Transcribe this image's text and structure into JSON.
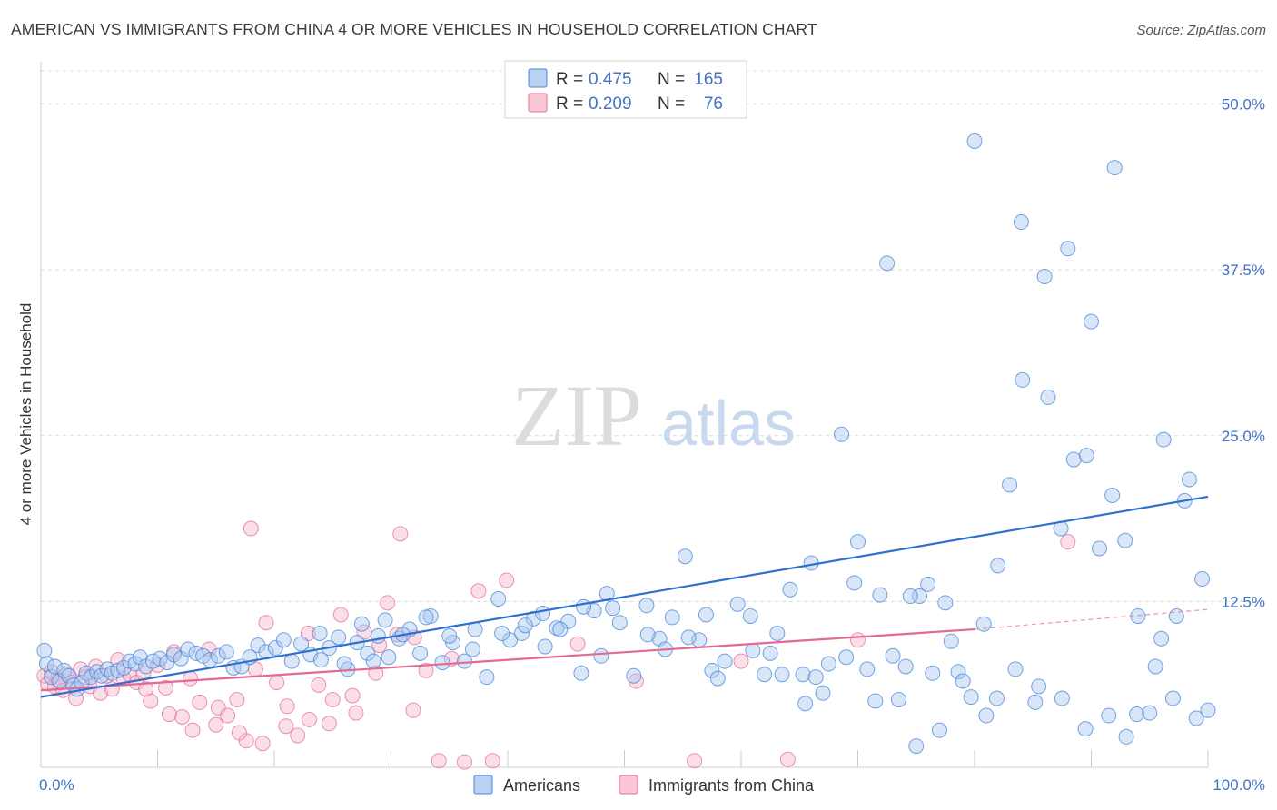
{
  "title": "AMERICAN VS IMMIGRANTS FROM CHINA 4 OR MORE VEHICLES IN HOUSEHOLD CORRELATION CHART",
  "source": "Source: ZipAtlas.com",
  "watermark": {
    "zip": "ZIP",
    "atlas": "atlas"
  },
  "colors": {
    "americans_fill": "#a9c7ef",
    "americans_stroke": "#4a86d8",
    "americans_line": "#2f6fd0",
    "china_fill": "#f6b8cb",
    "china_stroke": "#e46f96",
    "china_line": "#e26a93",
    "tick_label": "#4472c4",
    "grid": "#d9d9d9"
  },
  "legend": {
    "rows": [
      {
        "r_label": "R =",
        "r_value": "0.475",
        "n_label": "N =",
        "n_value": "165"
      },
      {
        "r_label": "R =",
        "r_value": "0.209",
        "n_label": "N =",
        "n_value": "76"
      }
    ]
  },
  "bottom_legend": [
    "Americans",
    "Immigrants from China"
  ],
  "chart_data": {
    "type": "scatter",
    "ylabel": "4 or more Vehicles in Household",
    "xlabel": "",
    "xlim": [
      0,
      100
    ],
    "ylim": [
      0,
      52.5
    ],
    "x_tick_labels": [
      "0.0%",
      "100.0%"
    ],
    "y_ticks": [
      12.5,
      25.0,
      37.5,
      50.0
    ],
    "y_tick_labels": [
      "12.5%",
      "25.0%",
      "37.5%",
      "50.0%"
    ],
    "x_minor_ticks": [
      10,
      20,
      30,
      40,
      50,
      60,
      70,
      80,
      90,
      100
    ],
    "grid": true,
    "legend_placement": "top-center",
    "series": [
      {
        "name": "Americans",
        "r": 0.475,
        "n": 165,
        "trend": {
          "x": [
            0,
            100
          ],
          "y": [
            5.3,
            20.4
          ]
        },
        "points": [
          [
            0.3,
            8.8
          ],
          [
            0.5,
            7.8
          ],
          [
            0.9,
            6.8
          ],
          [
            1.2,
            7.6
          ],
          [
            1.6,
            6.5
          ],
          [
            2.0,
            7.3
          ],
          [
            2.4,
            6.9
          ],
          [
            2.8,
            6.2
          ],
          [
            3.1,
            5.9
          ],
          [
            3.5,
            6.4
          ],
          [
            3.9,
            7.1
          ],
          [
            4.3,
            6.8
          ],
          [
            4.8,
            7.2
          ],
          [
            5.2,
            6.9
          ],
          [
            5.7,
            7.4
          ],
          [
            6.1,
            7.1
          ],
          [
            6.6,
            7.3
          ],
          [
            7.1,
            7.5
          ],
          [
            7.6,
            8.0
          ],
          [
            8.1,
            7.8
          ],
          [
            8.5,
            8.3
          ],
          [
            9.0,
            7.6
          ],
          [
            9.6,
            8.0
          ],
          [
            10.2,
            8.2
          ],
          [
            10.8,
            7.9
          ],
          [
            11.4,
            8.5
          ],
          [
            12.0,
            8.2
          ],
          [
            12.6,
            8.9
          ],
          [
            13.3,
            8.6
          ],
          [
            13.9,
            8.4
          ],
          [
            14.5,
            8.1
          ],
          [
            15.2,
            8.4
          ],
          [
            15.9,
            8.7
          ],
          [
            16.5,
            7.5
          ],
          [
            17.2,
            7.6
          ],
          [
            17.9,
            8.3
          ],
          [
            18.6,
            9.2
          ],
          [
            19.3,
            8.7
          ],
          [
            20.1,
            9.0
          ],
          [
            20.8,
            9.6
          ],
          [
            21.5,
            8.0
          ],
          [
            22.3,
            9.3
          ],
          [
            23.1,
            8.5
          ],
          [
            23.9,
            10.1
          ],
          [
            24.7,
            9.0
          ],
          [
            25.5,
            9.8
          ],
          [
            26.3,
            7.4
          ],
          [
            27.1,
            9.4
          ],
          [
            28.0,
            8.6
          ],
          [
            28.9,
            9.9
          ],
          [
            29.8,
            8.3
          ],
          [
            30.7,
            9.7
          ],
          [
            31.6,
            10.4
          ],
          [
            32.5,
            8.6
          ],
          [
            33.4,
            11.4
          ],
          [
            34.4,
            7.9
          ],
          [
            35.3,
            9.4
          ],
          [
            36.3,
            8.0
          ],
          [
            37.2,
            10.4
          ],
          [
            38.2,
            6.8
          ],
          [
            39.2,
            12.7
          ],
          [
            40.2,
            9.6
          ],
          [
            41.2,
            10.1
          ],
          [
            42.2,
            11.2
          ],
          [
            43.2,
            9.1
          ],
          [
            44.2,
            10.5
          ],
          [
            45.2,
            11.0
          ],
          [
            46.3,
            7.1
          ],
          [
            47.4,
            11.8
          ],
          [
            48.5,
            13.1
          ],
          [
            49.6,
            10.9
          ],
          [
            50.8,
            6.9
          ],
          [
            51.9,
            12.2
          ],
          [
            53.0,
            9.7
          ],
          [
            54.1,
            11.3
          ],
          [
            55.2,
            15.9
          ],
          [
            56.4,
            9.6
          ],
          [
            57.5,
            7.3
          ],
          [
            58.6,
            8.0
          ],
          [
            59.7,
            12.3
          ],
          [
            60.8,
            11.4
          ],
          [
            62.0,
            7.0
          ],
          [
            63.1,
            10.1
          ],
          [
            64.2,
            13.4
          ],
          [
            65.3,
            7.0
          ],
          [
            66.4,
            6.8
          ],
          [
            67.5,
            7.8
          ],
          [
            68.6,
            25.1
          ],
          [
            69.7,
            13.9
          ],
          [
            70.8,
            7.4
          ],
          [
            71.9,
            13.0
          ],
          [
            73.0,
            8.4
          ],
          [
            74.1,
            7.6
          ],
          [
            75.3,
            12.9
          ],
          [
            76.4,
            7.1
          ],
          [
            77.5,
            12.4
          ],
          [
            78.6,
            7.2
          ],
          [
            79.7,
            5.3
          ],
          [
            80.8,
            10.8
          ],
          [
            81.9,
            5.2
          ],
          [
            83.0,
            21.3
          ],
          [
            84.1,
            29.2
          ],
          [
            85.2,
            4.9
          ],
          [
            86.3,
            27.9
          ],
          [
            87.4,
            18.0
          ],
          [
            88.5,
            23.2
          ],
          [
            89.6,
            23.5
          ],
          [
            90.7,
            16.5
          ],
          [
            91.8,
            20.5
          ],
          [
            92.9,
            17.1
          ],
          [
            93.9,
            4.0
          ],
          [
            95.0,
            4.1
          ],
          [
            96.2,
            24.7
          ],
          [
            97.3,
            11.4
          ],
          [
            98.4,
            21.7
          ],
          [
            99.5,
            14.2
          ],
          [
            100.0,
            4.3
          ],
          [
            43.0,
            11.6
          ],
          [
            48.0,
            8.4
          ],
          [
            53.5,
            8.9
          ],
          [
            58.0,
            6.7
          ],
          [
            62.5,
            8.6
          ],
          [
            66.0,
            15.4
          ],
          [
            70.0,
            17.0
          ],
          [
            72.5,
            38.0
          ],
          [
            74.5,
            12.9
          ],
          [
            76.0,
            13.8
          ],
          [
            78.0,
            9.5
          ],
          [
            80.0,
            47.2
          ],
          [
            82.0,
            15.2
          ],
          [
            84.0,
            41.1
          ],
          [
            86.0,
            37.0
          ],
          [
            88.0,
            39.1
          ],
          [
            90.0,
            33.6
          ],
          [
            92.0,
            45.2
          ],
          [
            94.0,
            11.4
          ],
          [
            96.0,
            9.7
          ],
          [
            98.0,
            20.1
          ],
          [
            27.5,
            10.8
          ],
          [
            29.5,
            11.1
          ],
          [
            31.0,
            10.0
          ],
          [
            33.0,
            11.3
          ],
          [
            35.0,
            9.9
          ],
          [
            37.0,
            8.9
          ],
          [
            39.5,
            10.1
          ],
          [
            41.5,
            10.7
          ],
          [
            44.5,
            10.4
          ],
          [
            46.5,
            12.1
          ],
          [
            49.0,
            12.0
          ],
          [
            52.0,
            10.0
          ],
          [
            55.5,
            9.8
          ],
          [
            57.0,
            11.5
          ],
          [
            61.0,
            8.8
          ],
          [
            63.5,
            7.0
          ],
          [
            65.5,
            4.8
          ],
          [
            67.0,
            5.6
          ],
          [
            69.0,
            8.3
          ],
          [
            71.5,
            5.0
          ],
          [
            73.5,
            5.1
          ],
          [
            75.0,
            1.6
          ],
          [
            77.0,
            2.8
          ],
          [
            79.0,
            6.5
          ],
          [
            81.0,
            3.9
          ],
          [
            83.5,
            7.4
          ],
          [
            85.5,
            6.1
          ],
          [
            87.5,
            5.2
          ],
          [
            89.5,
            2.9
          ],
          [
            91.5,
            3.9
          ],
          [
            93.0,
            2.3
          ],
          [
            95.5,
            7.6
          ],
          [
            97.0,
            5.2
          ],
          [
            99.0,
            3.7
          ],
          [
            24.0,
            8.1
          ],
          [
            26.0,
            7.8
          ],
          [
            28.5,
            8.0
          ]
        ]
      },
      {
        "name": "Immigrants from China",
        "r": 0.209,
        "n": 76,
        "trend": {
          "x": [
            0,
            80
          ],
          "y": [
            5.8,
            10.4
          ]
        },
        "trend_extension": {
          "x": [
            80,
            100
          ],
          "y": [
            10.4,
            11.9
          ]
        },
        "points": [
          [
            0.3,
            6.9
          ],
          [
            0.6,
            6.3
          ],
          [
            0.9,
            7.2
          ],
          [
            1.2,
            6.1
          ],
          [
            1.5,
            6.6
          ],
          [
            1.9,
            5.8
          ],
          [
            2.2,
            7.0
          ],
          [
            2.6,
            6.4
          ],
          [
            3.0,
            5.2
          ],
          [
            3.4,
            7.4
          ],
          [
            3.8,
            6.8
          ],
          [
            4.2,
            6.1
          ],
          [
            4.7,
            7.6
          ],
          [
            5.1,
            5.6
          ],
          [
            5.6,
            6.9
          ],
          [
            6.1,
            5.9
          ],
          [
            6.6,
            8.1
          ],
          [
            7.1,
            6.7
          ],
          [
            7.6,
            7.0
          ],
          [
            8.2,
            6.4
          ],
          [
            8.8,
            7.1
          ],
          [
            9.4,
            5.0
          ],
          [
            10.0,
            7.7
          ],
          [
            10.7,
            6.0
          ],
          [
            11.4,
            8.7
          ],
          [
            12.1,
            3.8
          ],
          [
            12.8,
            6.7
          ],
          [
            13.6,
            4.9
          ],
          [
            14.4,
            8.9
          ],
          [
            15.2,
            4.5
          ],
          [
            16.0,
            3.9
          ],
          [
            16.8,
            5.1
          ],
          [
            17.6,
            2.0
          ],
          [
            18.4,
            7.4
          ],
          [
            19.3,
            10.9
          ],
          [
            20.2,
            6.4
          ],
          [
            21.1,
            4.6
          ],
          [
            22.0,
            2.4
          ],
          [
            22.9,
            10.1
          ],
          [
            23.8,
            6.2
          ],
          [
            24.7,
            3.3
          ],
          [
            25.7,
            11.5
          ],
          [
            26.7,
            5.4
          ],
          [
            27.7,
            10.2
          ],
          [
            28.7,
            7.1
          ],
          [
            29.7,
            12.4
          ],
          [
            30.8,
            17.6
          ],
          [
            31.9,
            4.3
          ],
          [
            33.0,
            7.3
          ],
          [
            34.1,
            0.5
          ],
          [
            35.2,
            8.2
          ],
          [
            36.3,
            0.4
          ],
          [
            37.5,
            13.3
          ],
          [
            38.7,
            0.5
          ],
          [
            39.9,
            14.1
          ],
          [
            9.0,
            5.9
          ],
          [
            11.0,
            4.0
          ],
          [
            13.0,
            2.8
          ],
          [
            15.0,
            3.2
          ],
          [
            17.0,
            2.6
          ],
          [
            19.0,
            1.8
          ],
          [
            21.0,
            3.1
          ],
          [
            23.0,
            3.6
          ],
          [
            25.0,
            5.1
          ],
          [
            27.0,
            4.1
          ],
          [
            29.0,
            9.2
          ],
          [
            30.5,
            10.0
          ],
          [
            32.0,
            9.8
          ],
          [
            18.0,
            18.0
          ],
          [
            46.0,
            9.3
          ],
          [
            51.0,
            6.5
          ],
          [
            56.0,
            0.5
          ],
          [
            60.0,
            8.0
          ],
          [
            64.0,
            0.6
          ],
          [
            70.0,
            9.6
          ],
          [
            88.0,
            17.0
          ]
        ]
      }
    ]
  }
}
